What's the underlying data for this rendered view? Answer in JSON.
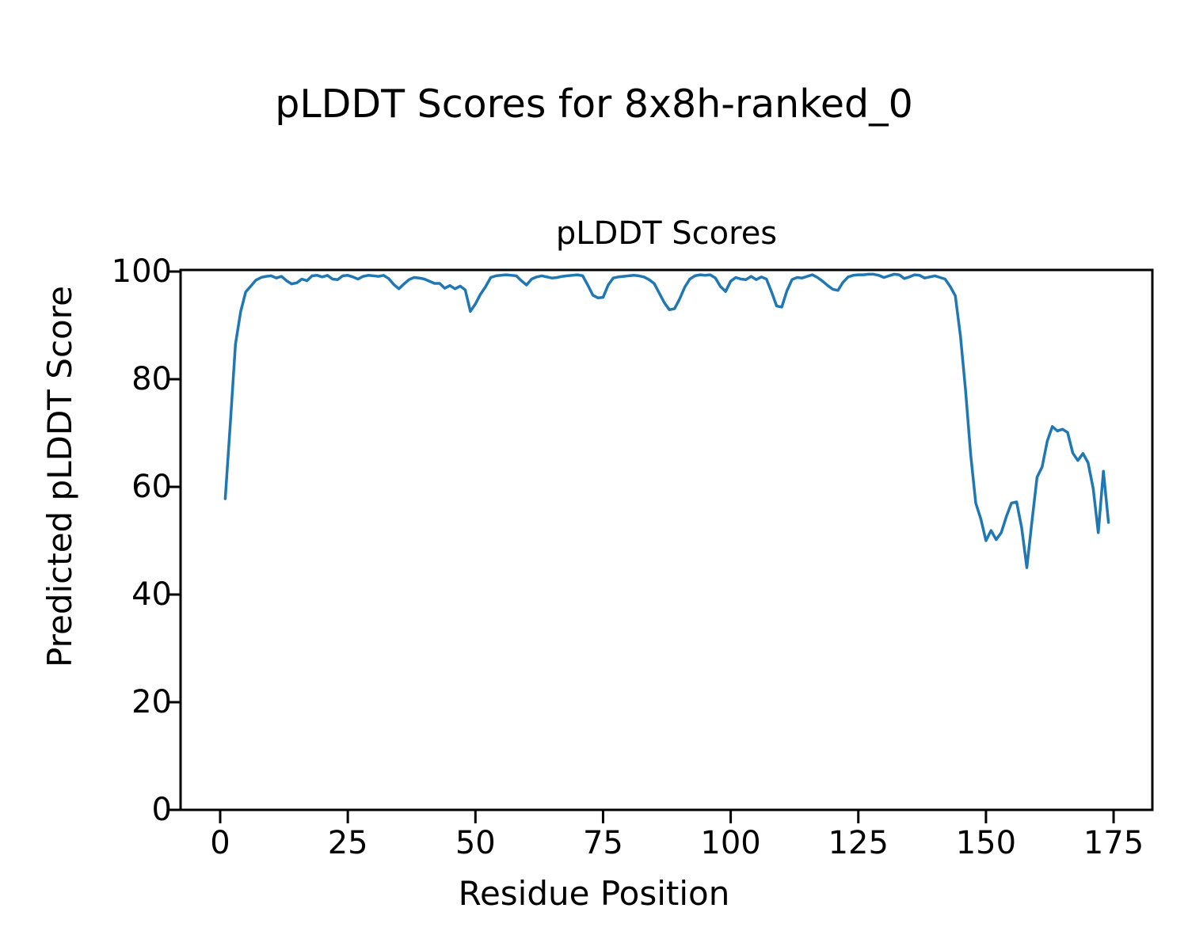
{
  "figure": {
    "suptitle": "pLDDT Scores for 8x8h-ranked_0",
    "background_color": "#ffffff",
    "text_color": "#000000"
  },
  "chart_data": {
    "type": "line",
    "title": "pLDDT Scores",
    "xlabel": "Residue Position",
    "ylabel": "Predicted pLDDT Score",
    "xticks": [
      0,
      25,
      50,
      75,
      100,
      125,
      150,
      175
    ],
    "yticks": [
      0,
      20,
      40,
      60,
      80,
      100
    ],
    "xlim": [
      -8,
      183
    ],
    "ylim": [
      0,
      100
    ],
    "grid": false,
    "legend": null,
    "line_color": "#1f77b4",
    "series": [
      {
        "name": "pLDDT",
        "x_start": 1,
        "x_step": 1,
        "values": [
          57.8,
          72.0,
          86.5,
          92.5,
          96.2,
          97.3,
          98.4,
          98.9,
          99.1,
          99.2,
          98.8,
          99.1,
          98.3,
          97.7,
          97.9,
          98.6,
          98.3,
          99.2,
          99.3,
          99.0,
          99.3,
          98.6,
          98.5,
          99.2,
          99.3,
          99.0,
          98.6,
          99.1,
          99.3,
          99.2,
          99.1,
          99.3,
          98.7,
          97.6,
          96.8,
          97.7,
          98.5,
          98.9,
          98.8,
          98.6,
          98.2,
          97.8,
          97.8,
          96.9,
          97.4,
          96.8,
          97.3,
          96.6,
          92.6,
          94.0,
          95.8,
          97.2,
          98.9,
          99.2,
          99.3,
          99.4,
          99.3,
          99.2,
          98.3,
          97.5,
          98.6,
          99.0,
          99.2,
          99.0,
          98.8,
          98.9,
          99.1,
          99.2,
          99.3,
          99.4,
          99.2,
          97.5,
          95.6,
          95.1,
          95.2,
          97.5,
          98.8,
          99.0,
          99.1,
          99.2,
          99.3,
          99.2,
          99.0,
          98.5,
          97.8,
          96.0,
          94.2,
          92.9,
          93.1,
          94.9,
          97.1,
          98.6,
          99.2,
          99.4,
          99.3,
          99.4,
          98.8,
          97.2,
          96.3,
          98.2,
          98.9,
          98.6,
          98.5,
          99.1,
          98.5,
          99.0,
          98.6,
          96.2,
          93.6,
          93.4,
          96.4,
          98.5,
          98.9,
          98.8,
          99.1,
          99.4,
          98.9,
          98.2,
          97.4,
          96.7,
          96.5,
          98.0,
          99.0,
          99.3,
          99.4,
          99.4,
          99.5,
          99.5,
          99.3,
          98.9,
          99.2,
          99.5,
          99.4,
          98.7,
          99.0,
          99.4,
          99.3,
          98.8,
          99.0,
          99.2,
          98.9,
          98.6,
          97.2,
          95.5,
          88.0,
          78.0,
          66.0,
          57.0,
          54.0,
          50.0,
          51.9,
          50.2,
          51.5,
          54.5,
          57.0,
          57.2,
          52.4,
          45.0,
          53.5,
          61.8,
          63.7,
          68.5,
          71.2,
          70.4,
          70.7,
          70.1,
          66.3,
          64.9,
          66.2,
          64.5,
          59.7,
          51.5,
          62.9,
          53.4
        ]
      }
    ]
  }
}
